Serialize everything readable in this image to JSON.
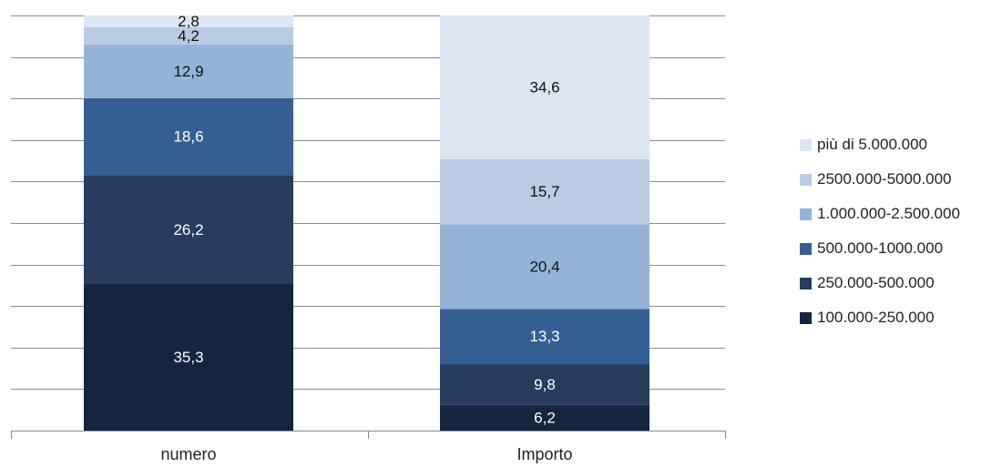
{
  "chart_data": {
    "type": "bar",
    "stacked": true,
    "categories": [
      "numero",
      "Importo"
    ],
    "series": [
      {
        "name": "100.000-250.000",
        "color": "#13253f",
        "label_color": "#ffffff",
        "values": [
          35.3,
          6.2
        ],
        "labels": [
          "35,3",
          "6,2"
        ]
      },
      {
        "name": "250.000-500.000",
        "color": "#263d5e",
        "label_color": "#ffffff",
        "values": [
          26.2,
          9.8
        ],
        "labels": [
          "26,2",
          "9,8"
        ]
      },
      {
        "name": "500.000-1000.000",
        "color": "#355f93",
        "label_color": "#ffffff",
        "values": [
          18.6,
          13.3
        ],
        "labels": [
          "18,6",
          "13,3"
        ]
      },
      {
        "name": "1.000.000-2.500.000",
        "color": "#95b3d7",
        "label_color": "#111111",
        "values": [
          12.9,
          20.4
        ],
        "labels": [
          "12,9",
          "20,4"
        ]
      },
      {
        "name": "2500.000-5000.000",
        "color": "#b9cce4",
        "label_color": "#111111",
        "values": [
          4.2,
          15.7
        ],
        "labels": [
          "4,2",
          "15,7"
        ]
      },
      {
        "name": "più di 5.000.000",
        "color": "#dce6f2",
        "label_color": "#111111",
        "values": [
          2.8,
          34.6
        ],
        "labels": [
          "2,8",
          "34,6"
        ]
      }
    ],
    "ylim": [
      0,
      100
    ],
    "grid": true,
    "legend_position": "right",
    "title": "",
    "xlabel": "",
    "ylabel": ""
  }
}
